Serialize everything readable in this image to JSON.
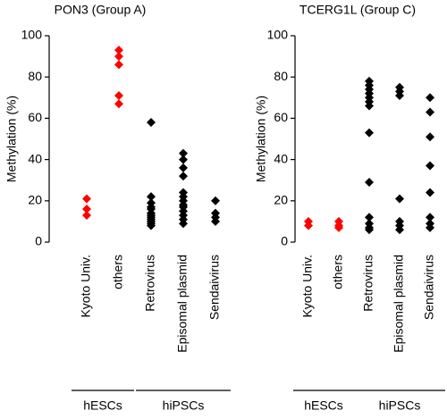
{
  "chart_data": [
    {
      "type": "strip",
      "title": "PON3 (Group A)",
      "ylabel": "Methylation (%)",
      "categories": [
        "Kyoto Univ.",
        "others",
        "Retrovirus",
        "Episomal plasmid",
        "Sendaivirus"
      ],
      "colors": [
        "#ff0000",
        "#ff0000",
        "#000000",
        "#000000",
        "#000000"
      ],
      "values": [
        [
          21,
          16,
          13
        ],
        [
          93,
          90,
          86,
          71,
          67
        ],
        [
          58,
          22,
          19,
          17,
          16,
          14,
          13,
          12,
          11,
          10,
          9,
          8
        ],
        [
          43,
          40,
          36,
          32,
          24,
          22,
          20,
          18,
          17,
          15,
          13,
          11,
          9
        ],
        [
          20,
          14,
          12,
          10
        ]
      ],
      "groups": [
        {
          "name": "hESCs",
          "categories": [
            0,
            1
          ]
        },
        {
          "name": "hiPSCs",
          "categories": [
            2,
            3,
            4
          ]
        }
      ],
      "ylim": [
        0,
        100
      ],
      "yticks": [
        0,
        20,
        40,
        60,
        80,
        100
      ]
    },
    {
      "type": "strip",
      "title": "TCERG1L (Group C)",
      "ylabel": "Methylation (%)",
      "categories": [
        "Kyoto Univ.",
        "others",
        "Retrovirus",
        "Episomal plasmid",
        "Sendaivirus"
      ],
      "colors": [
        "#ff0000",
        "#ff0000",
        "#000000",
        "#000000",
        "#000000"
      ],
      "values": [
        [
          10,
          8
        ],
        [
          10,
          8,
          7
        ],
        [
          78,
          76,
          74,
          72,
          70,
          68,
          66,
          53,
          29,
          12,
          9,
          7,
          6
        ],
        [
          75,
          73,
          71,
          21,
          10,
          8,
          6
        ],
        [
          70,
          63,
          51,
          37,
          24,
          12,
          9,
          7
        ]
      ],
      "groups": [
        {
          "name": "hESCs",
          "categories": [
            0,
            1
          ]
        },
        {
          "name": "hiPSCs",
          "categories": [
            2,
            3,
            4
          ]
        }
      ],
      "ylim": [
        0,
        100
      ],
      "yticks": [
        0,
        20,
        40,
        60,
        80,
        100
      ]
    }
  ]
}
